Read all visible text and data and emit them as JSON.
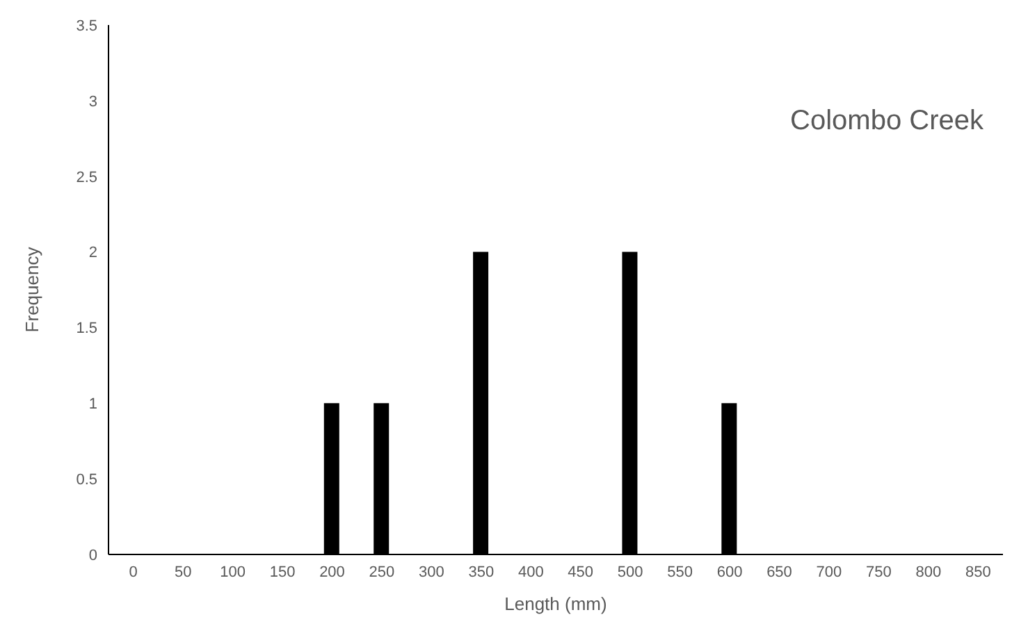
{
  "chart_data": {
    "type": "bar",
    "title": "Colombo Creek",
    "xlabel": "Length (mm)",
    "ylabel": "Frequency",
    "categories": [
      "0",
      "50",
      "100",
      "150",
      "200",
      "250",
      "300",
      "350",
      "400",
      "450",
      "500",
      "550",
      "600",
      "650",
      "700",
      "750",
      "800",
      "850"
    ],
    "values": [
      0,
      0,
      0,
      0,
      1,
      1,
      0,
      2,
      0,
      0,
      2,
      0,
      1,
      0,
      0,
      0,
      0,
      0
    ],
    "color": "#000000",
    "ylim": [
      0,
      3.5
    ],
    "yticks": [
      0,
      0.5,
      1,
      1.5,
      2,
      2.5,
      3,
      3.5
    ],
    "grid": false,
    "legend": false
  }
}
